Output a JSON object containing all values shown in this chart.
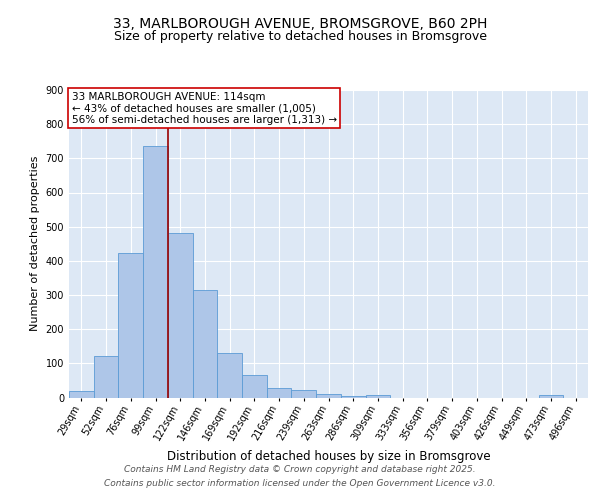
{
  "title1": "33, MARLBOROUGH AVENUE, BROMSGROVE, B60 2PH",
  "title2": "Size of property relative to detached houses in Bromsgrove",
  "xlabel": "Distribution of detached houses by size in Bromsgrove",
  "ylabel": "Number of detached properties",
  "categories": [
    "29sqm",
    "52sqm",
    "76sqm",
    "99sqm",
    "122sqm",
    "146sqm",
    "169sqm",
    "192sqm",
    "216sqm",
    "239sqm",
    "263sqm",
    "286sqm",
    "309sqm",
    "333sqm",
    "356sqm",
    "379sqm",
    "403sqm",
    "426sqm",
    "449sqm",
    "473sqm",
    "496sqm"
  ],
  "values": [
    20,
    122,
    422,
    737,
    482,
    315,
    130,
    65,
    27,
    22,
    11,
    4,
    8,
    0,
    0,
    0,
    0,
    0,
    0,
    8,
    0
  ],
  "bar_color": "#aec6e8",
  "bar_edge_color": "#5b9bd5",
  "background_color": "#dde8f5",
  "grid_color": "#ffffff",
  "red_line_x": 3.5,
  "annotation_line1": "33 MARLBOROUGH AVENUE: 114sqm",
  "annotation_line2": "← 43% of detached houses are smaller (1,005)",
  "annotation_line3": "56% of semi-detached houses are larger (1,313) →",
  "annotation_box_color": "#ffffff",
  "annotation_box_edge": "#cc0000",
  "ylim": [
    0,
    900
  ],
  "yticks": [
    0,
    100,
    200,
    300,
    400,
    500,
    600,
    700,
    800,
    900
  ],
  "footer_line1": "Contains HM Land Registry data © Crown copyright and database right 2025.",
  "footer_line2": "Contains public sector information licensed under the Open Government Licence v3.0.",
  "title1_fontsize": 10,
  "title2_fontsize": 9,
  "xlabel_fontsize": 8.5,
  "ylabel_fontsize": 8,
  "tick_fontsize": 7,
  "annotation_fontsize": 7.5,
  "footer_fontsize": 6.5
}
